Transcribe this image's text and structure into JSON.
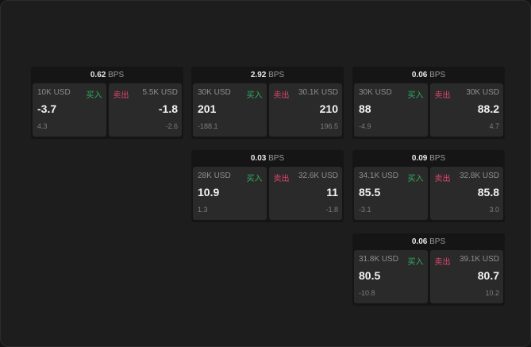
{
  "cards": [
    {
      "bps": "0.62",
      "unit": "BPS",
      "buy": {
        "size": "10K USD",
        "label": "买入",
        "price": "-3.7",
        "change": "4.3"
      },
      "sell": {
        "size": "5.5K USD",
        "label": "卖出",
        "price": "-1.8",
        "change": "-2.6"
      }
    },
    {
      "bps": "2.92",
      "unit": "BPS",
      "buy": {
        "size": "30K USD",
        "label": "买入",
        "price": "201",
        "change": "-188.1"
      },
      "sell": {
        "size": "30.1K USD",
        "label": "卖出",
        "price": "210",
        "change": "196.5"
      }
    },
    {
      "bps": "0.06",
      "unit": "BPS",
      "buy": {
        "size": "30K USD",
        "label": "买入",
        "price": "88",
        "change": "-4.9"
      },
      "sell": {
        "size": "30K USD",
        "label": "卖出",
        "price": "88.2",
        "change": "4.7"
      }
    },
    {
      "bps": "0.03",
      "unit": "BPS",
      "buy": {
        "size": "28K USD",
        "label": "买入",
        "price": "10.9",
        "change": "1.3"
      },
      "sell": {
        "size": "32.6K USD",
        "label": "卖出",
        "price": "11",
        "change": "-1.8"
      }
    },
    {
      "bps": "0.09",
      "unit": "BPS",
      "buy": {
        "size": "34.1K USD",
        "label": "买入",
        "price": "85.5",
        "change": "-3.1"
      },
      "sell": {
        "size": "32.8K USD",
        "label": "卖出",
        "price": "85.8",
        "change": "3.0"
      }
    },
    {
      "bps": "0.06",
      "unit": "BPS",
      "buy": {
        "size": "31.8K USD",
        "label": "买入",
        "price": "80.5",
        "change": "-10.8"
      },
      "sell": {
        "size": "39.1K USD",
        "label": "卖出",
        "price": "80.7",
        "change": "10.2"
      }
    }
  ],
  "colors": {
    "buy": "#2fae5f",
    "sell": "#e0456e"
  }
}
